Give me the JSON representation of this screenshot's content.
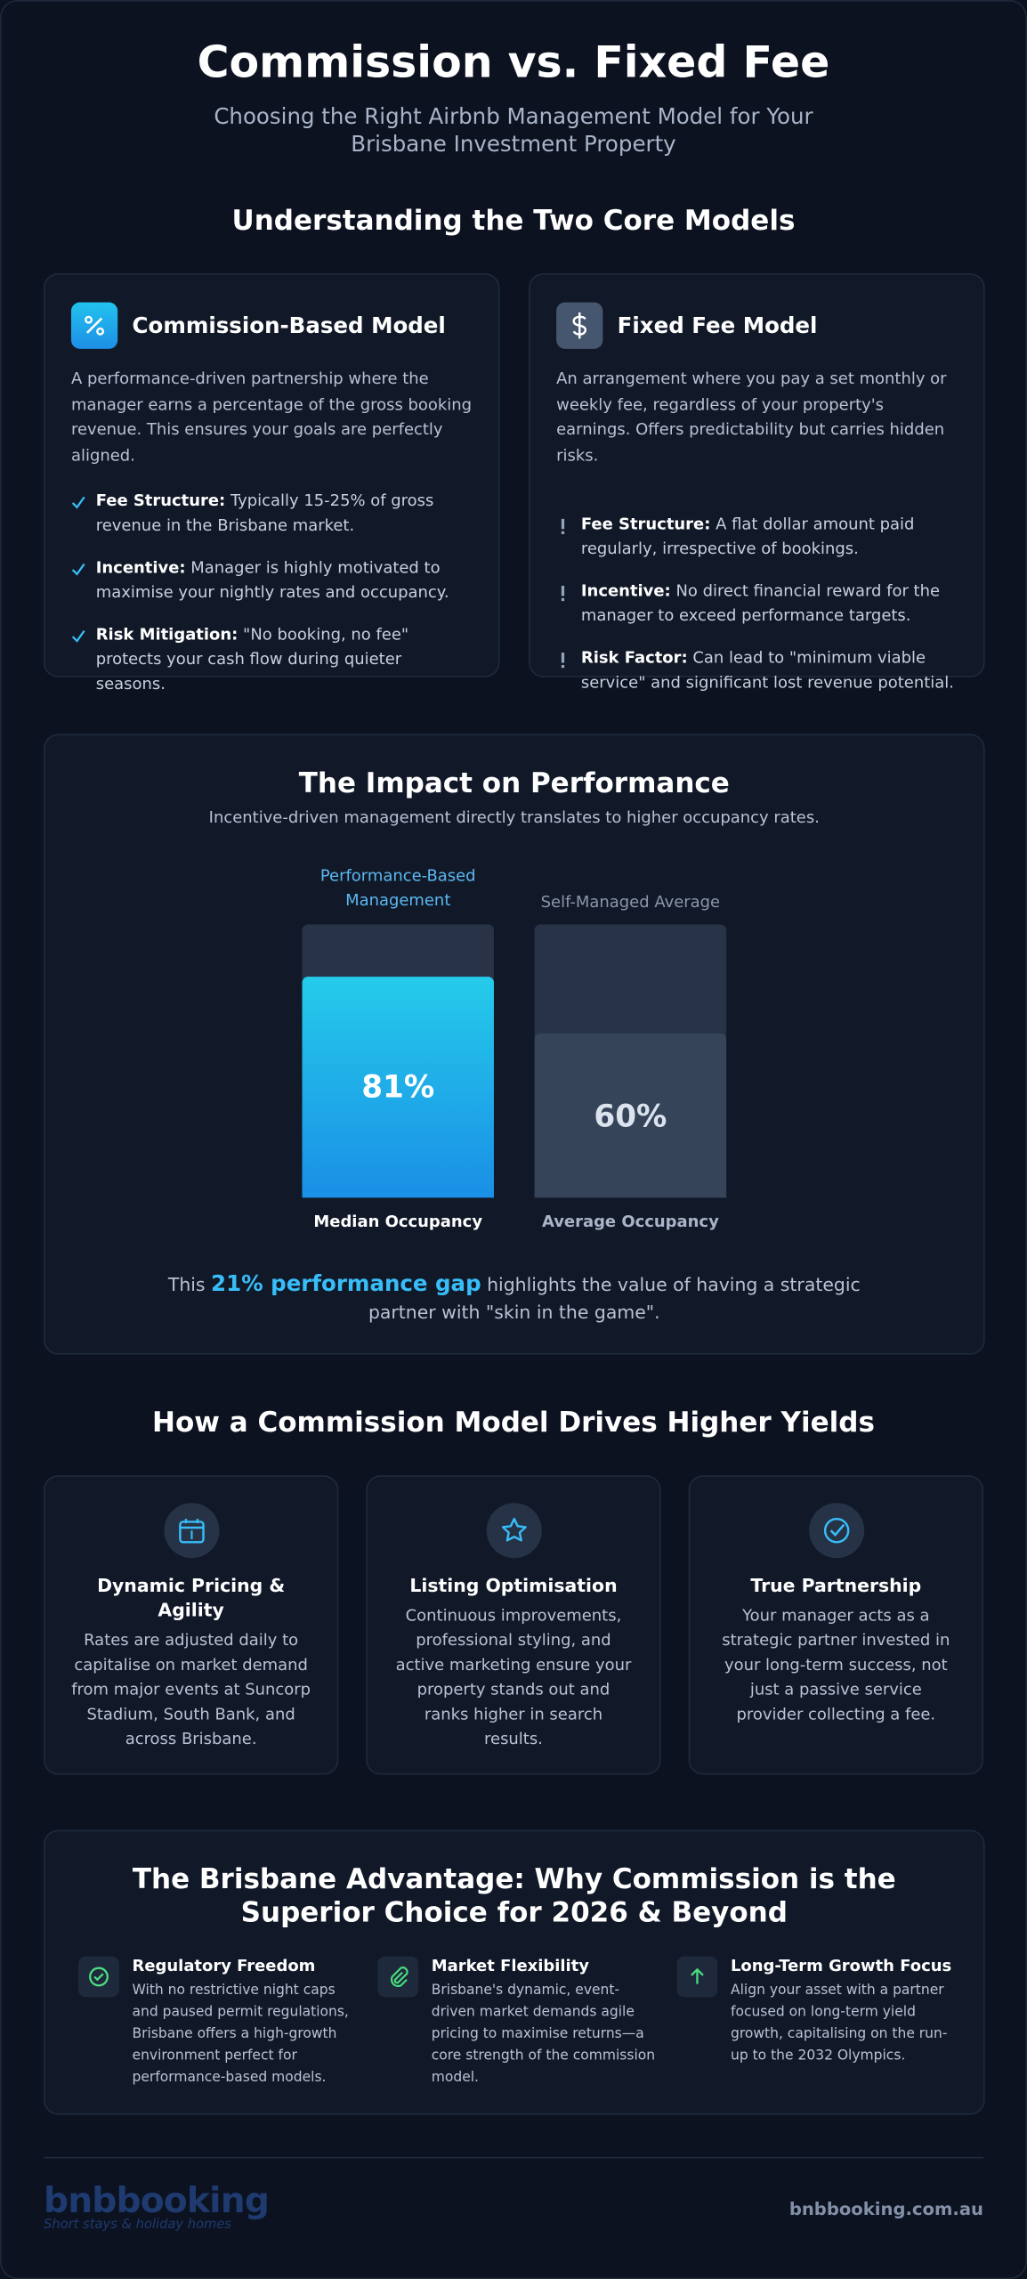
{
  "header": {
    "title": "Commission vs. Fixed Fee",
    "subtitle": "Choosing the Right Airbnb Management Model for Your Brisbane Investment Property"
  },
  "models": {
    "heading": "Understanding the Two Core Models",
    "cards": [
      {
        "title": "Commission-Based Model",
        "description": "A performance-driven partnership where the manager earns a percentage of the gross booking revenue. This ensures your goals are perfectly aligned.",
        "points": [
          {
            "label": "Fee Structure:",
            "text": "Typically 15-25% of gross revenue in the Brisbane market."
          },
          {
            "label": "Incentive:",
            "text": "Manager is highly motivated to maximise your nightly rates and occupancy."
          },
          {
            "label": "Risk Mitigation:",
            "text": "\"No booking, no fee\" protects your cash flow during quieter seasons."
          }
        ]
      },
      {
        "title": "Fixed Fee Model",
        "description": "An arrangement where you pay a set monthly or weekly fee, regardless of your property's earnings. Offers predictability but carries hidden risks.",
        "points": [
          {
            "label": "Fee Structure:",
            "text": "A flat dollar amount paid regularly, irrespective of bookings."
          },
          {
            "label": "Incentive:",
            "text": "No direct financial reward for the manager to exceed performance targets."
          },
          {
            "label": "Risk Factor:",
            "text": "Can lead to \"minimum viable service\" and significant lost revenue potential."
          }
        ]
      }
    ]
  },
  "performance": {
    "title": "The Impact on Performance",
    "subtitle": "Incentive-driven management directly translates to higher occupancy rates.",
    "ylim": [
      0,
      100
    ],
    "bars": [
      {
        "name": "Performance-Based Management",
        "value": 81,
        "value_label": "81%",
        "caption": "Median Occupancy"
      },
      {
        "name": "Self-Managed Average",
        "value": 60,
        "value_label": "60%",
        "caption": "Average Occupancy"
      }
    ],
    "note": {
      "prefix": "This",
      "highlight": "21% performance gap",
      "suffix": "highlights the value of having a strategic partner with \"skin in the game\"."
    }
  },
  "drivers": {
    "heading": "How a Commission Model Drives Higher Yields",
    "cards": [
      {
        "title": "Dynamic Pricing & Agility",
        "text": "Rates are adjusted daily to capitalise on market demand from major events at Suncorp Stadium, South Bank, and across Brisbane."
      },
      {
        "title": "Listing Optimisation",
        "text": "Continuous improvements, professional styling, and active marketing ensure your property stands out and ranks higher in search results."
      },
      {
        "title": "True Partnership",
        "text": "Your manager acts as a strategic partner invested in your long-term success, not just a passive service provider collecting a fee."
      }
    ]
  },
  "advantage": {
    "title": "The Brisbane Advantage: Why Commission is the Superior Choice for 2026 & Beyond",
    "items": [
      {
        "title": "Regulatory Freedom",
        "text": "With no restrictive night caps and paused permit regulations, Brisbane offers a high-growth environment perfect for performance-based models."
      },
      {
        "title": "Market Flexibility",
        "text": "Brisbane's dynamic, event-driven market demands agile pricing to maximise returns—a core strength of the commission model."
      },
      {
        "title": "Long-Term Growth Focus",
        "text": "Align your asset with a partner focused on long-term yield growth, capitalising on the run-up to the 2032 Olympics."
      }
    ]
  },
  "footer": {
    "logo": "bnbbooking",
    "tagline": "Short stays & holiday homes",
    "url": "bnbbooking.com.au"
  }
}
